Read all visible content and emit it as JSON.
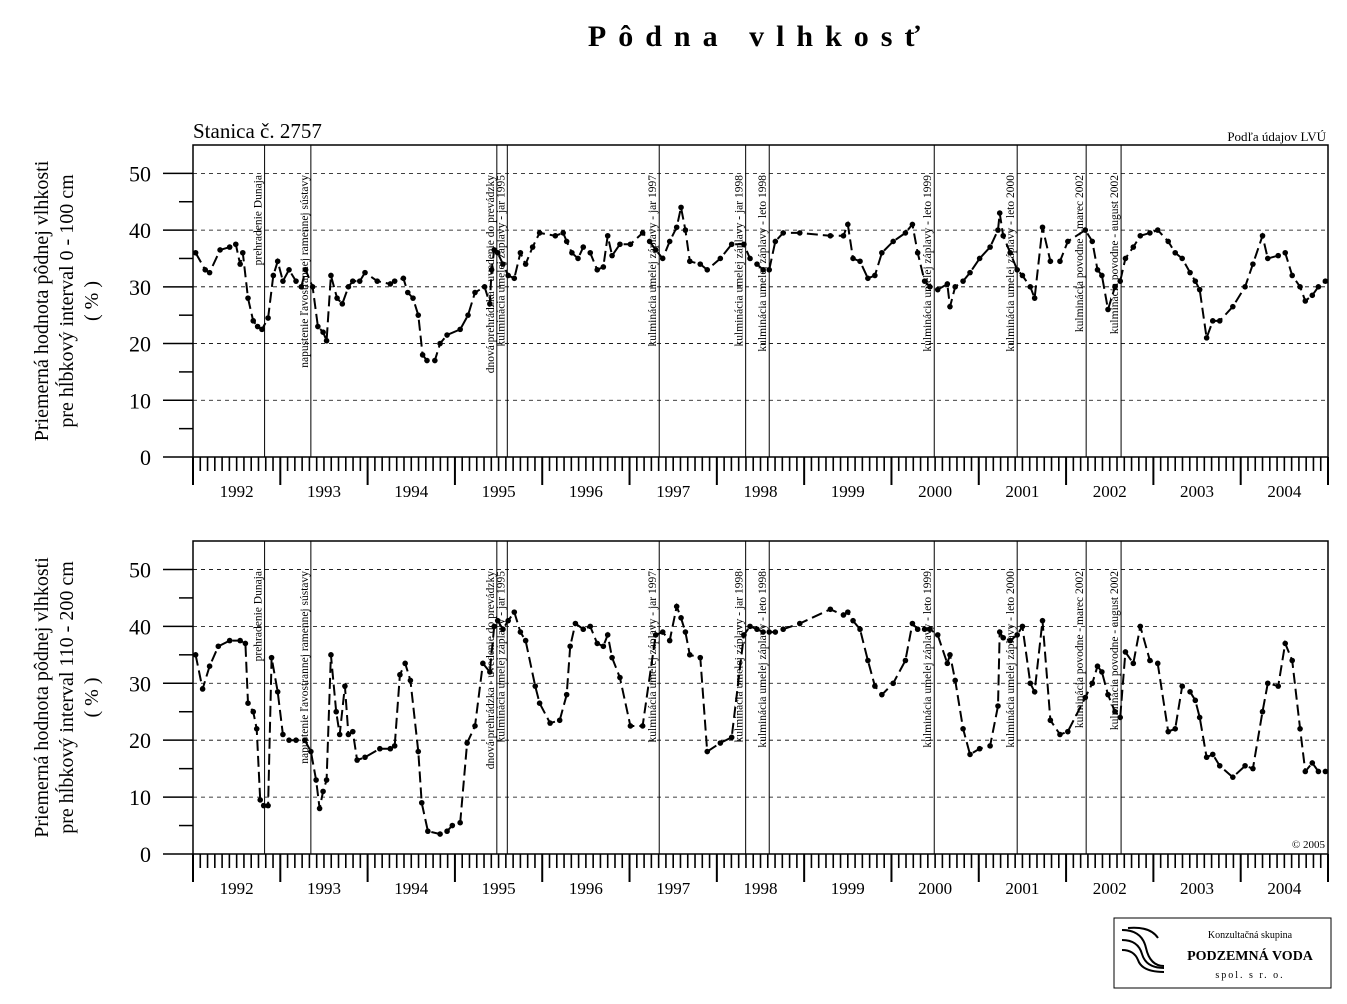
{
  "title": "Pôdna vlhkosť",
  "logo": {
    "line1": "Konzultačná skupina",
    "line2": "PODZEMNÁ VODA",
    "line3": "spol. s r. o."
  },
  "chart_data": [
    {
      "type": "line",
      "subtitle": "Stanica č. 2757",
      "source": "Podľa údajov LVÚ",
      "ylabel": [
        "Priemerná hodnota pôdnej vlhkosti",
        "pre hĺbkový interval 0 - 100 cm",
        "( % )"
      ],
      "xlim": [
        1992,
        2005
      ],
      "ylim": [
        0,
        55
      ],
      "yticks": [
        0,
        10,
        20,
        30,
        40,
        50
      ],
      "grid": true,
      "color": "#000000",
      "xticks": [
        {
          "value": 1992.5,
          "label": "1992"
        },
        {
          "value": 1993.5,
          "label": "1993"
        },
        {
          "value": 1994.5,
          "label": "1994"
        },
        {
          "value": 1995.5,
          "label": "1995"
        },
        {
          "value": 1996.5,
          "label": "1996"
        },
        {
          "value": 1997.5,
          "label": "1997"
        },
        {
          "value": 1998.5,
          "label": "1998"
        },
        {
          "value": 1999.5,
          "label": "1999"
        },
        {
          "value": 2000.5,
          "label": "2000"
        },
        {
          "value": 2001.5,
          "label": "2001"
        },
        {
          "value": 2002.5,
          "label": "2002"
        },
        {
          "value": 2003.5,
          "label": "2003"
        },
        {
          "value": 2004.5,
          "label": "2004"
        }
      ],
      "events": [
        {
          "x": 1992.82,
          "label": "prehradenie Dunaja"
        },
        {
          "x": 1993.35,
          "label": "napustenie ľavostrannej ramennej sústavy"
        },
        {
          "x": 1995.48,
          "label": "dnová prehrádzka - uvedenie do prevádzky"
        },
        {
          "x": 1995.6,
          "label": "kulminácia umelej záplavy - jar 1995"
        },
        {
          "x": 1997.34,
          "label": "kulminácia umelej záplavy - jar 1997"
        },
        {
          "x": 1998.33,
          "label": "kulminácia umelej záplavy - jar 1998"
        },
        {
          "x": 1998.6,
          "label": "kulminácia umelej záplavy - leto 1998"
        },
        {
          "x": 2000.49,
          "label": "kulminácia umelej záplavy - leto 1999"
        },
        {
          "x": 2001.44,
          "label": "kulminácia umelej záplavy - leto 2000"
        },
        {
          "x": 2002.23,
          "label": "kulminácia povodne - marec 2002"
        },
        {
          "x": 2002.63,
          "label": "kulminácia povodne - august 2002"
        }
      ],
      "x": [
        1992.03,
        1992.14,
        1992.19,
        1992.31,
        1992.42,
        1992.49,
        1992.54,
        1992.57,
        1992.63,
        1992.69,
        1992.74,
        1992.79,
        1992.86,
        1992.92,
        1992.97,
        1993.03,
        1993.1,
        1993.18,
        1993.24,
        1993.29,
        1993.37,
        1993.43,
        1993.49,
        1993.53,
        1993.58,
        1993.65,
        1993.71,
        1993.78,
        1993.83,
        1993.91,
        1993.97,
        1994.11,
        1994.26,
        1994.31,
        1994.41,
        1994.46,
        1994.52,
        1994.58,
        1994.63,
        1994.68,
        1994.77,
        1994.83,
        1994.91,
        1995.06,
        1995.15,
        1995.23,
        1995.34,
        1995.4,
        1995.42,
        1995.45,
        1995.49,
        1995.55,
        1995.61,
        1995.68,
        1995.75,
        1995.81,
        1995.89,
        1995.97,
        1996.15,
        1996.24,
        1996.28,
        1996.34,
        1996.41,
        1996.47,
        1996.55,
        1996.63,
        1996.7,
        1996.75,
        1996.8,
        1996.89,
        1997.01,
        1997.15,
        1997.23,
        1997.3,
        1997.38,
        1997.46,
        1997.54,
        1997.59,
        1997.64,
        1997.69,
        1997.81,
        1997.89,
        1998.04,
        1998.17,
        1998.31,
        1998.38,
        1998.46,
        1998.53,
        1998.6,
        1998.67,
        1998.76,
        1998.95,
        1999.3,
        1999.45,
        1999.5,
        1999.56,
        1999.64,
        1999.73,
        1999.81,
        1999.89,
        2000.02,
        2000.16,
        2000.24,
        2000.3,
        2000.38,
        2000.44,
        2000.53,
        2000.64,
        2000.67,
        2000.73,
        2000.82,
        2000.9,
        2001.01,
        2001.13,
        2001.22,
        2001.24,
        2001.28,
        2001.36,
        2001.44,
        2001.5,
        2001.59,
        2001.64,
        2001.73,
        2001.82,
        2001.93,
        2002.02,
        2002.22,
        2002.3,
        2002.36,
        2002.41,
        2002.48,
        2002.56,
        2002.62,
        2002.68,
        2002.77,
        2002.85,
        2002.96,
        2003.05,
        2003.17,
        2003.25,
        2003.33,
        2003.42,
        2003.48,
        2003.53,
        2003.61,
        2003.68,
        2003.76,
        2003.91,
        2004.05,
        2004.14,
        2004.25,
        2004.31,
        2004.43,
        2004.51,
        2004.59,
        2004.68,
        2004.74,
        2004.82,
        2004.89,
        2004.97
      ],
      "values": [
        36,
        33,
        32.5,
        36.5,
        37,
        37.5,
        34,
        36,
        28,
        24,
        23,
        22.5,
        24.5,
        32,
        34.5,
        31,
        33,
        31,
        30,
        33,
        30,
        23,
        22,
        20.5,
        32,
        28,
        27,
        30,
        31,
        31,
        32.5,
        31,
        30.5,
        31,
        31.5,
        29,
        28,
        25,
        18,
        17,
        17,
        20,
        21.5,
        22.5,
        25,
        29,
        30,
        27,
        33,
        36.5,
        36,
        34,
        32,
        31.5,
        36,
        34,
        37,
        39.5,
        39,
        39.5,
        38,
        36,
        35,
        37,
        36,
        33,
        33.5,
        39,
        35.5,
        37.5,
        37.5,
        39.5,
        38,
        36.5,
        35,
        38,
        40.5,
        44,
        40,
        34.5,
        34,
        33,
        35,
        37.5,
        37.5,
        35,
        34,
        33,
        33,
        38,
        39.5,
        39.5,
        39,
        39,
        41,
        35,
        34.5,
        31.5,
        32,
        36,
        38,
        39.5,
        41,
        36,
        31,
        30,
        29.5,
        30.5,
        26.5,
        30,
        31,
        32.5,
        35,
        37,
        40,
        43,
        39,
        36,
        33,
        32,
        30,
        28,
        40.5,
        34.5,
        34.5,
        38,
        40,
        38,
        33,
        32,
        26,
        30,
        31,
        35,
        37,
        39,
        39.5,
        40,
        38,
        36,
        35,
        32.5,
        31,
        29.5,
        21,
        24,
        24,
        26.5,
        30,
        34,
        39,
        35,
        35.5,
        36,
        32,
        30,
        27.5,
        28.5,
        30,
        31
      ]
    },
    {
      "type": "line",
      "copyright": "© 2005",
      "ylabel": [
        "Priemerná hodnota pôdnej vlhkosti",
        "pre hĺbkový interval 110 - 200 cm",
        "( % )"
      ],
      "xlim": [
        1992,
        2005
      ],
      "ylim": [
        0,
        55
      ],
      "yticks": [
        0,
        10,
        20,
        30,
        40,
        50
      ],
      "grid": true,
      "color": "#000000",
      "xticks": [
        {
          "value": 1992.5,
          "label": "1992"
        },
        {
          "value": 1993.5,
          "label": "1993"
        },
        {
          "value": 1994.5,
          "label": "1994"
        },
        {
          "value": 1995.5,
          "label": "1995"
        },
        {
          "value": 1996.5,
          "label": "1996"
        },
        {
          "value": 1997.5,
          "label": "1997"
        },
        {
          "value": 1998.5,
          "label": "1998"
        },
        {
          "value": 1999.5,
          "label": "1999"
        },
        {
          "value": 2000.5,
          "label": "2000"
        },
        {
          "value": 2001.5,
          "label": "2001"
        },
        {
          "value": 2002.5,
          "label": "2002"
        },
        {
          "value": 2003.5,
          "label": "2003"
        },
        {
          "value": 2004.5,
          "label": "2004"
        }
      ],
      "events": [
        {
          "x": 1992.82,
          "label": "prehradenie Dunaja"
        },
        {
          "x": 1993.35,
          "label": "napustenie ľavostrannej ramennej sústavy"
        },
        {
          "x": 1995.48,
          "label": "dnová prehrádzka - uvedenie do prevádzky"
        },
        {
          "x": 1995.6,
          "label": "kulminácia umelej záplavy - jar 1995"
        },
        {
          "x": 1997.34,
          "label": "kulminácia umelej záplavy - jar 1997"
        },
        {
          "x": 1998.33,
          "label": "kulminácia umelej záplavy - jar 1998"
        },
        {
          "x": 1998.6,
          "label": "kulminácia umelej záplavy - leto 1998"
        },
        {
          "x": 2000.49,
          "label": "kulminácia umelej záplavy - leto 1999"
        },
        {
          "x": 2001.44,
          "label": "kulminácia umelej záplavy - leto 2000"
        },
        {
          "x": 2002.23,
          "label": "kulminácia povodne - marec 2002"
        },
        {
          "x": 2002.63,
          "label": "kulminácia povodne - august 2002"
        }
      ],
      "x": [
        1992.03,
        1992.11,
        1992.19,
        1992.29,
        1992.42,
        1992.54,
        1992.6,
        1992.63,
        1992.69,
        1992.73,
        1992.77,
        1992.81,
        1992.86,
        1992.9,
        1992.97,
        1993.03,
        1993.1,
        1993.18,
        1993.28,
        1993.35,
        1993.41,
        1993.45,
        1993.49,
        1993.53,
        1993.58,
        1993.64,
        1993.68,
        1993.74,
        1993.78,
        1993.83,
        1993.88,
        1993.97,
        1994.14,
        1994.26,
        1994.31,
        1994.37,
        1994.43,
        1994.49,
        1994.58,
        1994.62,
        1994.69,
        1994.83,
        1994.91,
        1994.97,
        1995.06,
        1995.14,
        1995.23,
        1995.32,
        1995.4,
        1995.45,
        1995.49,
        1995.55,
        1995.61,
        1995.68,
        1995.75,
        1995.81,
        1995.92,
        1995.97,
        1996.09,
        1996.2,
        1996.28,
        1996.32,
        1996.38,
        1996.47,
        1996.55,
        1996.63,
        1996.7,
        1996.75,
        1996.8,
        1996.89,
        1997.01,
        1997.15,
        1997.3,
        1997.38,
        1997.46,
        1997.54,
        1997.59,
        1997.64,
        1997.69,
        1997.81,
        1997.89,
        1998.04,
        1998.17,
        1998.31,
        1998.38,
        1998.46,
        1998.53,
        1998.6,
        1998.67,
        1998.76,
        1998.95,
        1999.3,
        1999.45,
        1999.5,
        1999.56,
        1999.64,
        1999.73,
        1999.81,
        1999.89,
        2000.02,
        2000.16,
        2000.24,
        2000.3,
        2000.38,
        2000.44,
        2000.53,
        2000.64,
        2000.67,
        2000.73,
        2000.82,
        2000.9,
        2001.01,
        2001.13,
        2001.22,
        2001.24,
        2001.28,
        2001.36,
        2001.44,
        2001.5,
        2001.59,
        2001.64,
        2001.73,
        2001.82,
        2001.93,
        2002.02,
        2002.22,
        2002.3,
        2002.36,
        2002.41,
        2002.48,
        2002.56,
        2002.62,
        2002.68,
        2002.77,
        2002.85,
        2002.96,
        2003.05,
        2003.17,
        2003.25,
        2003.33,
        2003.42,
        2003.48,
        2003.53,
        2003.61,
        2003.68,
        2003.76,
        2003.91,
        2004.05,
        2004.14,
        2004.25,
        2004.31,
        2004.43,
        2004.51,
        2004.59,
        2004.68,
        2004.74,
        2004.82,
        2004.89,
        2004.97
      ],
      "values": [
        35,
        29,
        33,
        36.5,
        37.5,
        37.5,
        37,
        26.5,
        25,
        22,
        9.5,
        8.5,
        8.5,
        34.5,
        28.5,
        21,
        20,
        20,
        20,
        18,
        13,
        8,
        11,
        13,
        35,
        25,
        21,
        29.5,
        21,
        21.5,
        16.5,
        17,
        18.5,
        18.5,
        19,
        31.5,
        33.5,
        30.5,
        18,
        9,
        4,
        3.5,
        4,
        5,
        5.5,
        19.5,
        22.5,
        33.5,
        32,
        40,
        41,
        39.5,
        41,
        42.5,
        39,
        37.5,
        29.5,
        26.5,
        23,
        23.5,
        28,
        36.5,
        40.5,
        39.5,
        40,
        37,
        36.5,
        38.5,
        34.5,
        31,
        22.5,
        22.5,
        38.5,
        39,
        37.5,
        43.5,
        41.5,
        39,
        35,
        34.5,
        18,
        19.5,
        20.5,
        38.5,
        40,
        39.5,
        39,
        39,
        39,
        39.5,
        40.5,
        43,
        42,
        42.5,
        41,
        39.5,
        34,
        29.5,
        28,
        30,
        34,
        40.5,
        39.5,
        39.5,
        39.5,
        38.5,
        33.5,
        35,
        30.5,
        22,
        17.5,
        18.5,
        19,
        26,
        39,
        38,
        37.5,
        38.5,
        40,
        30,
        28.5,
        41,
        23.5,
        21,
        21.5,
        27.5,
        30,
        33,
        32,
        28,
        25,
        24,
        35.5,
        33.5,
        40,
        34,
        33.5,
        21.5,
        22,
        29.5,
        28.5,
        27,
        24,
        17,
        17.5,
        15.5,
        13.5,
        15.5,
        15,
        25,
        30,
        29.5,
        37,
        34,
        22,
        14.5,
        16,
        14.5,
        14.5
      ]
    }
  ]
}
